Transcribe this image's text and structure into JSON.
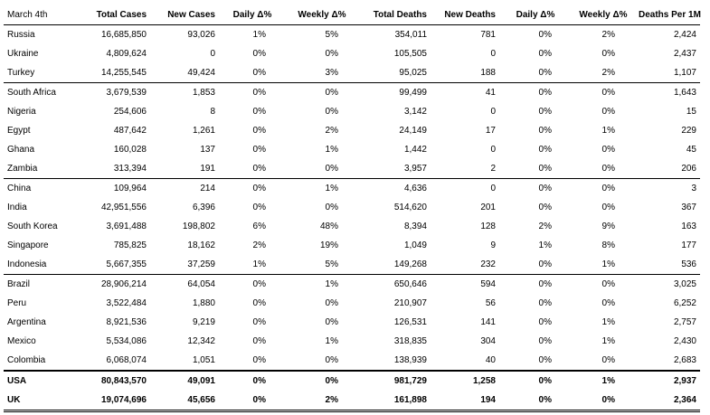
{
  "header": {
    "label": "March 4th",
    "columns": [
      "Total Cases",
      "New Cases",
      "Daily Δ%",
      "Weekly Δ%",
      "Total Deaths",
      "New Deaths",
      "Daily Δ%",
      "Weekly Δ%",
      "Deaths Per 1M"
    ]
  },
  "rows": [
    [
      "Russia",
      "16,685,850",
      "93,026",
      "1%",
      "5%",
      "354,011",
      "781",
      "0%",
      "2%",
      "2,424"
    ],
    [
      "Ukraine",
      "4,809,624",
      "0",
      "0%",
      "0%",
      "105,505",
      "0",
      "0%",
      "0%",
      "2,437"
    ],
    [
      "Turkey",
      "14,255,545",
      "49,424",
      "0%",
      "3%",
      "95,025",
      "188",
      "0%",
      "2%",
      "1,107"
    ],
    [
      "South Africa",
      "3,679,539",
      "1,853",
      "0%",
      "0%",
      "99,499",
      "41",
      "0%",
      "0%",
      "1,643"
    ],
    [
      "Nigeria",
      "254,606",
      "8",
      "0%",
      "0%",
      "3,142",
      "0",
      "0%",
      "0%",
      "15"
    ],
    [
      "Egypt",
      "487,642",
      "1,261",
      "0%",
      "2%",
      "24,149",
      "17",
      "0%",
      "1%",
      "229"
    ],
    [
      "Ghana",
      "160,028",
      "137",
      "0%",
      "1%",
      "1,442",
      "0",
      "0%",
      "0%",
      "45"
    ],
    [
      "Zambia",
      "313,394",
      "191",
      "0%",
      "0%",
      "3,957",
      "2",
      "0%",
      "0%",
      "206"
    ],
    [
      "China",
      "109,964",
      "214",
      "0%",
      "1%",
      "4,636",
      "0",
      "0%",
      "0%",
      "3"
    ],
    [
      "India",
      "42,951,556",
      "6,396",
      "0%",
      "0%",
      "514,620",
      "201",
      "0%",
      "0%",
      "367"
    ],
    [
      "South Korea",
      "3,691,488",
      "198,802",
      "6%",
      "48%",
      "8,394",
      "128",
      "2%",
      "9%",
      "163"
    ],
    [
      "Singapore",
      "785,825",
      "18,162",
      "2%",
      "19%",
      "1,049",
      "9",
      "1%",
      "8%",
      "177"
    ],
    [
      "Indonesia",
      "5,667,355",
      "37,259",
      "1%",
      "5%",
      "149,268",
      "232",
      "0%",
      "1%",
      "536"
    ],
    [
      "Brazil",
      "28,906,214",
      "64,054",
      "0%",
      "1%",
      "650,646",
      "594",
      "0%",
      "0%",
      "3,025"
    ],
    [
      "Peru",
      "3,522,484",
      "1,880",
      "0%",
      "0%",
      "210,907",
      "56",
      "0%",
      "0%",
      "6,252"
    ],
    [
      "Argentina",
      "8,921,536",
      "9,219",
      "0%",
      "0%",
      "126,531",
      "141",
      "0%",
      "1%",
      "2,757"
    ],
    [
      "Mexico",
      "5,534,086",
      "12,342",
      "0%",
      "1%",
      "318,835",
      "304",
      "0%",
      "1%",
      "2,430"
    ],
    [
      "Colombia",
      "6,068,074",
      "1,051",
      "0%",
      "0%",
      "138,939",
      "40",
      "0%",
      "0%",
      "2,683"
    ],
    [
      "USA",
      "80,843,570",
      "49,091",
      "0%",
      "0%",
      "981,729",
      "1,258",
      "0%",
      "1%",
      "2,937"
    ],
    [
      "UK",
      "19,074,696",
      "45,656",
      "0%",
      "2%",
      "161,898",
      "194",
      "0%",
      "0%",
      "2,364"
    ]
  ]
}
